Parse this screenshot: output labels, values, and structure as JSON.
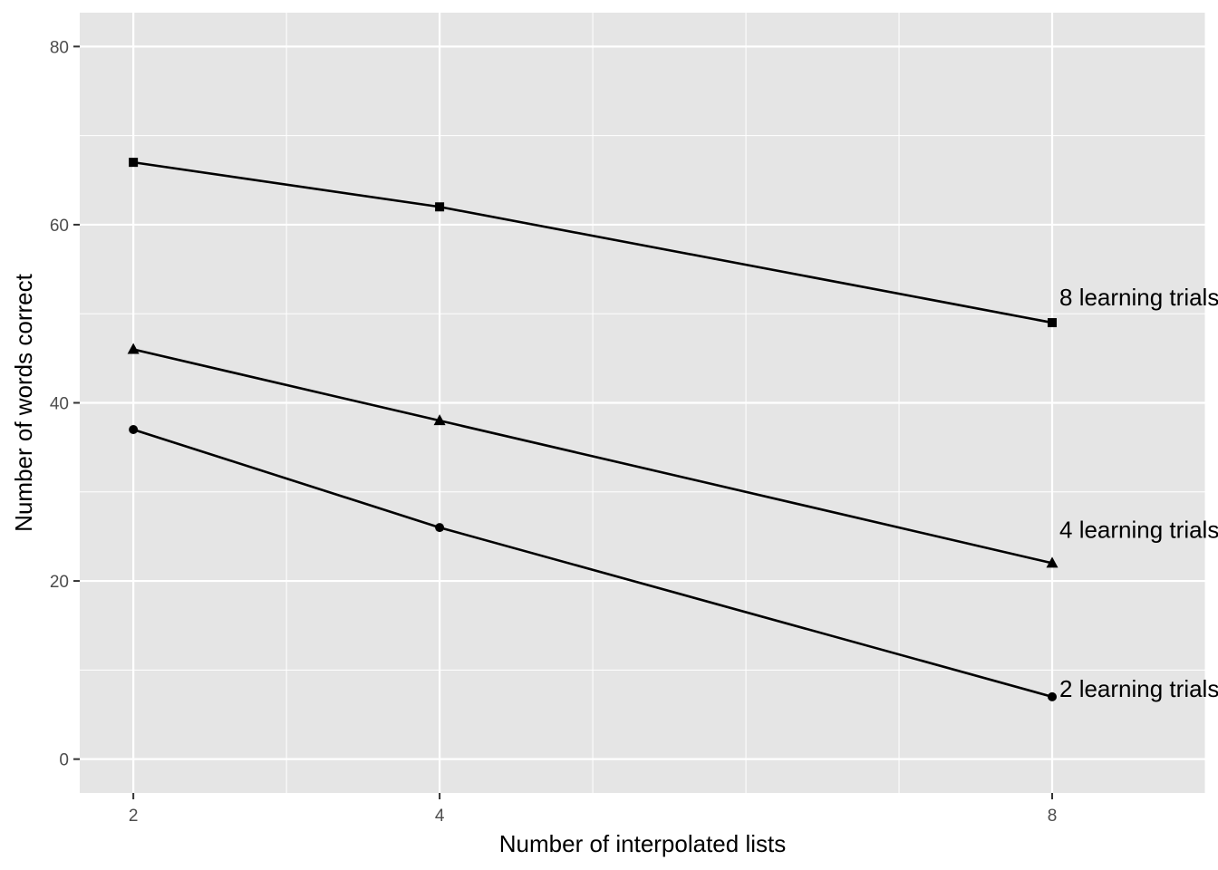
{
  "chart_data": {
    "type": "line",
    "title": "",
    "xlabel": "Number of interpolated lists",
    "ylabel": "Number of words correct",
    "x": [
      2,
      4,
      8
    ],
    "xlim": [
      1.65,
      9.0
    ],
    "ylim": [
      -3.8,
      83.8
    ],
    "x_ticks": [
      2,
      4,
      8
    ],
    "y_ticks": [
      0,
      20,
      40,
      60,
      80
    ],
    "x_minor_gridlines": [
      3,
      5,
      6,
      7,
      9
    ],
    "y_minor_gridlines": [
      10,
      30,
      50,
      70
    ],
    "grid": true,
    "legend": "none",
    "series": [
      {
        "name": "8 learning trials",
        "marker": "square",
        "values": [
          67,
          62,
          49
        ]
      },
      {
        "name": "4 learning trials",
        "marker": "triangle",
        "values": [
          46,
          38,
          22
        ]
      },
      {
        "name": "2 learning trials",
        "marker": "circle",
        "values": [
          37,
          26,
          7
        ]
      }
    ],
    "colors": {
      "panel": "#e5e5e5",
      "grid": "#ffffff",
      "line": "#000000",
      "tick_text": "#4d4d4d",
      "tick_mark": "#333333"
    }
  }
}
